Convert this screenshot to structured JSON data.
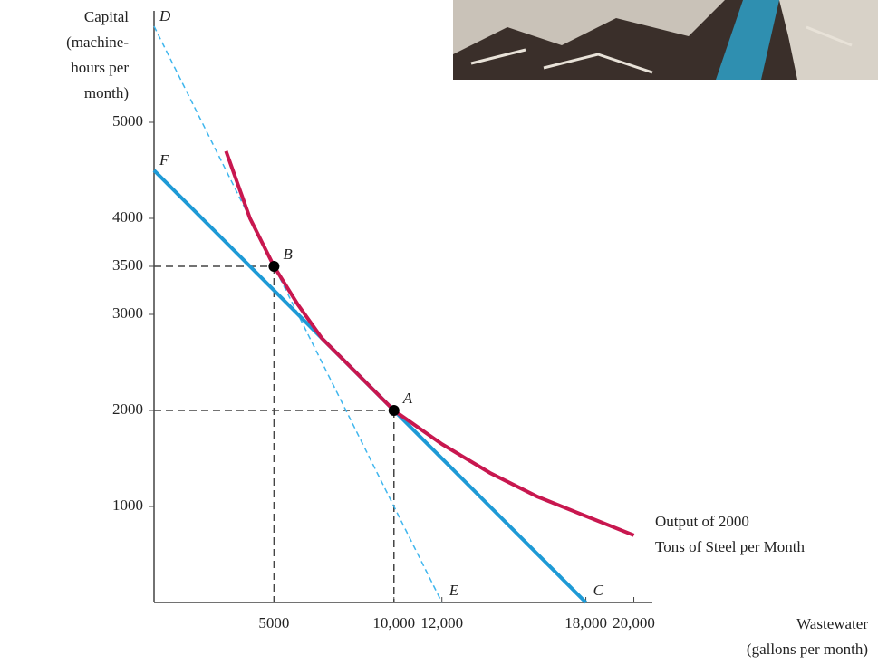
{
  "chart_data": {
    "type": "isoquant",
    "y_label": [
      "Capital",
      "(machine-",
      "hours per",
      "month)"
    ],
    "x_label": [
      "Wastewater",
      "(gallons per month)"
    ],
    "xlim": [
      0,
      21000
    ],
    "ylim": [
      0,
      6000
    ],
    "xticks": [
      5000,
      {
        "value": 10000,
        "label": "10,000"
      },
      {
        "value": 12000,
        "label": "12,000"
      },
      {
        "value": 18000,
        "label": "18,000"
      },
      {
        "value": 20000,
        "label": "20,000"
      }
    ],
    "yticks": [
      1000,
      2000,
      3000,
      3500,
      4000,
      5000
    ],
    "lines": [
      {
        "x": [
          0,
          12000
        ],
        "y": [
          6000,
          0
        ],
        "color": "#3fb6ee",
        "dashed": true,
        "labels": [
          "D",
          "E"
        ]
      },
      {
        "x": [
          0,
          18000
        ],
        "y": [
          4500,
          0
        ],
        "color": "#1e9ad6",
        "dashed": false,
        "labels": [
          "F",
          "C"
        ]
      }
    ],
    "curve": {
      "x": [
        3000,
        4000,
        5000,
        6000,
        7000,
        8000,
        10000,
        12000,
        14000,
        16000,
        18000,
        20000
      ],
      "y": [
        4700,
        4000,
        3500,
        3100,
        2750,
        2500,
        2000,
        1650,
        1350,
        1100,
        900,
        700
      ],
      "color": "#c8174f",
      "label": [
        "Output of 2000",
        "Tons of Steel per Month"
      ]
    },
    "points": [
      {
        "name": "B",
        "x": 5000,
        "y": 3500
      },
      {
        "name": "A",
        "x": 10000,
        "y": 2000
      }
    ]
  }
}
